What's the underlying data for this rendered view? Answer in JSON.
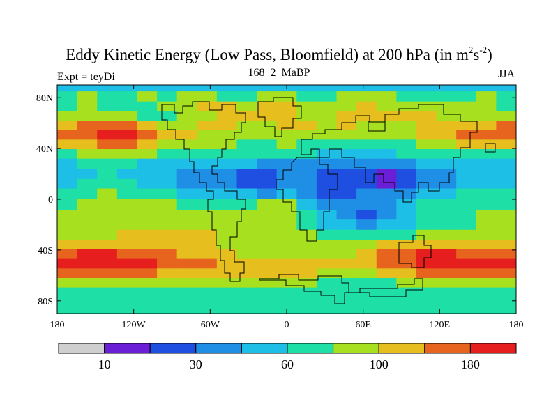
{
  "chart_data": {
    "type": "heatmap",
    "title_main": "Eddy Kinetic Energy (Low Pass, Bloomfield) at 200 hPa (in m",
    "title_unit_sup1": "2",
    "title_unit_mid": "s",
    "title_unit_sup2": "-2",
    "title_close": ")",
    "subtitle_left": "Expt = teyDi",
    "subtitle_center": "168_2_MaBP",
    "subtitle_right": "JJA",
    "x_range": [
      -180,
      180
    ],
    "y_range": [
      -90,
      90
    ],
    "x_ticks": [
      {
        "value": -180,
        "label": "180"
      },
      {
        "value": -120,
        "label": "120W"
      },
      {
        "value": -60,
        "label": "60W"
      },
      {
        "value": 0,
        "label": "0"
      },
      {
        "value": 60,
        "label": "60E"
      },
      {
        "value": 120,
        "label": "120E"
      },
      {
        "value": 180,
        "label": "180"
      }
    ],
    "y_ticks": [
      {
        "value": 80,
        "label": "80N"
      },
      {
        "value": 40,
        "label": "40N"
      },
      {
        "value": 0,
        "label": "0"
      },
      {
        "value": -40,
        "label": "40S"
      },
      {
        "value": -80,
        "label": "80S"
      }
    ],
    "colorbar": {
      "colors": [
        "#cfcfcf",
        "#6a1ed6",
        "#1f4fe0",
        "#1f8fe6",
        "#1ebfe6",
        "#1edfa6",
        "#a6e01e",
        "#e6bf1e",
        "#e6641e",
        "#e61e1e"
      ],
      "labels": [
        {
          "after_box": 1,
          "text": "10"
        },
        {
          "after_box": 3,
          "text": "30"
        },
        {
          "after_box": 5,
          "text": "60"
        },
        {
          "after_box": 7,
          "text": "100"
        },
        {
          "after_box": 9,
          "text": "180"
        }
      ]
    },
    "field": [
      [
        89,
        4,
        4,
        4,
        4,
        4,
        4,
        4,
        4,
        4,
        4,
        4,
        4,
        4,
        4,
        4,
        4,
        4,
        4,
        4,
        4,
        4,
        4,
        4
      ],
      [
        81,
        5,
        6,
        5,
        5,
        6,
        5,
        6,
        6,
        5,
        5,
        6,
        6,
        5,
        5,
        6,
        6,
        6,
        5,
        5,
        5,
        5,
        6,
        5
      ],
      [
        73,
        5,
        6,
        5,
        5,
        5,
        6,
        6,
        7,
        7,
        6,
        7,
        7,
        6,
        6,
        6,
        7,
        6,
        6,
        6,
        6,
        6,
        6,
        5
      ],
      [
        66,
        6,
        6,
        6,
        6,
        5,
        5,
        6,
        6,
        7,
        7,
        7,
        7,
        6,
        6,
        7,
        7,
        7,
        7,
        7,
        6,
        6,
        6,
        6
      ],
      [
        58,
        7,
        8,
        8,
        8,
        7,
        6,
        6,
        7,
        7,
        6,
        6,
        7,
        7,
        6,
        7,
        6,
        6,
        6,
        7,
        7,
        7,
        7,
        8
      ],
      [
        51,
        8,
        8,
        9,
        9,
        8,
        7,
        7,
        6,
        6,
        6,
        6,
        6,
        6,
        6,
        6,
        6,
        6,
        6,
        7,
        7,
        8,
        8,
        8
      ],
      [
        43,
        7,
        7,
        8,
        8,
        7,
        6,
        6,
        6,
        6,
        5,
        5,
        6,
        5,
        5,
        5,
        5,
        5,
        5,
        6,
        6,
        7,
        7,
        7
      ],
      [
        36,
        5,
        6,
        6,
        6,
        6,
        5,
        5,
        5,
        5,
        5,
        5,
        5,
        5,
        4,
        4,
        4,
        4,
        5,
        5,
        5,
        5,
        5,
        5
      ],
      [
        28,
        4,
        5,
        5,
        5,
        4,
        4,
        4,
        4,
        4,
        4,
        3,
        3,
        3,
        3,
        3,
        3,
        3,
        3,
        4,
        4,
        4,
        4,
        4
      ],
      [
        20,
        4,
        4,
        5,
        4,
        4,
        4,
        3,
        3,
        3,
        2,
        2,
        3,
        3,
        2,
        2,
        2,
        1,
        2,
        3,
        3,
        4,
        4,
        4
      ],
      [
        12,
        4,
        5,
        5,
        5,
        4,
        4,
        3,
        3,
        3,
        2,
        2,
        3,
        3,
        2,
        2,
        2,
        1,
        2,
        3,
        3,
        4,
        4,
        4
      ],
      [
        5,
        5,
        5,
        6,
        5,
        5,
        5,
        4,
        4,
        4,
        4,
        3,
        4,
        3,
        2,
        2,
        3,
        3,
        3,
        4,
        4,
        5,
        5,
        5
      ],
      [
        -5,
        5,
        6,
        6,
        6,
        6,
        6,
        5,
        5,
        5,
        5,
        6,
        6,
        4,
        3,
        3,
        3,
        3,
        4,
        5,
        5,
        5,
        5,
        5
      ],
      [
        -12,
        6,
        6,
        6,
        6,
        6,
        6,
        6,
        6,
        6,
        6,
        6,
        6,
        5,
        4,
        3,
        2,
        3,
        4,
        5,
        5,
        5,
        6,
        6
      ],
      [
        -20,
        6,
        6,
        6,
        6,
        6,
        6,
        6,
        6,
        6,
        6,
        6,
        6,
        5,
        4,
        4,
        3,
        4,
        4,
        5,
        5,
        5,
        6,
        6
      ],
      [
        -28,
        6,
        6,
        6,
        7,
        7,
        7,
        7,
        7,
        6,
        6,
        6,
        6,
        6,
        5,
        5,
        5,
        5,
        5,
        6,
        6,
        6,
        6,
        6
      ],
      [
        -36,
        7,
        7,
        7,
        7,
        7,
        7,
        7,
        7,
        6,
        6,
        6,
        6,
        6,
        6,
        6,
        6,
        7,
        7,
        7,
        7,
        7,
        7,
        7
      ],
      [
        -43,
        8,
        9,
        9,
        8,
        8,
        8,
        7,
        7,
        7,
        6,
        6,
        6,
        6,
        6,
        6,
        7,
        8,
        8,
        9,
        9,
        8,
        8,
        8
      ],
      [
        -51,
        9,
        9,
        9,
        9,
        9,
        8,
        8,
        8,
        7,
        7,
        7,
        7,
        7,
        7,
        7,
        7,
        8,
        8,
        9,
        9,
        9,
        9,
        9
      ],
      [
        -58,
        8,
        8,
        8,
        8,
        8,
        7,
        7,
        7,
        7,
        7,
        7,
        7,
        7,
        6,
        6,
        6,
        7,
        7,
        8,
        8,
        8,
        8,
        8
      ],
      [
        -66,
        6,
        6,
        6,
        6,
        6,
        6,
        6,
        6,
        6,
        6,
        6,
        6,
        6,
        5,
        5,
        5,
        5,
        6,
        6,
        6,
        6,
        6,
        6
      ],
      [
        -73,
        5,
        5,
        5,
        5,
        5,
        5,
        5,
        5,
        5,
        5,
        5,
        5,
        5,
        5,
        5,
        5,
        5,
        5,
        5,
        5,
        5,
        5,
        5
      ],
      [
        -81,
        5,
        5,
        5,
        5,
        5,
        5,
        5,
        5,
        5,
        5,
        5,
        5,
        5,
        5,
        5,
        5,
        5,
        5,
        5,
        5,
        5,
        5,
        5
      ],
      [
        -89,
        5,
        5,
        5,
        5,
        5,
        5,
        5,
        5,
        5,
        5,
        5,
        5,
        5,
        5,
        5,
        5,
        5,
        5,
        5,
        5,
        5,
        5,
        5
      ]
    ]
  }
}
